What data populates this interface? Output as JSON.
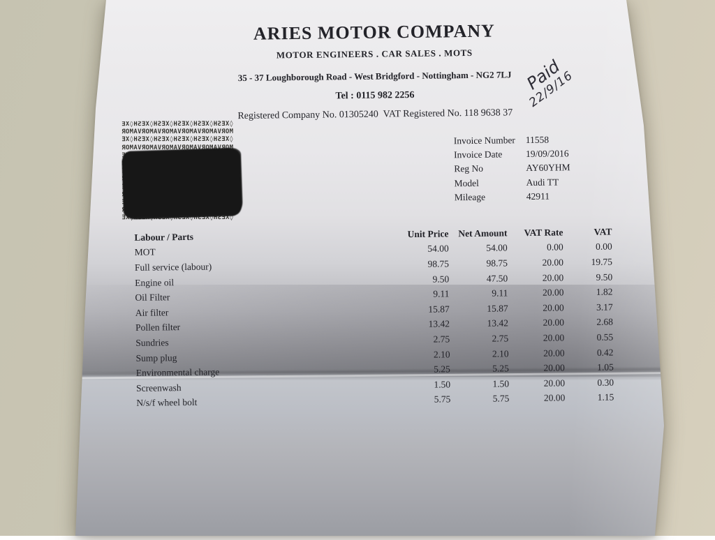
{
  "letterhead": {
    "company_name": "ARIES MOTOR COMPANY",
    "tagline": "MOTOR ENGINEERS . CAR SALES . MOTS",
    "address": "35 - 37 Loughborough Road - West Bridgford - Nottingham - NG2 7LJ",
    "phone": "Tel : 0115 982 2256",
    "registration": "Registered Company No. 01305240  VAT Registered No. 118 9638 37"
  },
  "handwriting": {
    "word": "Paid",
    "date": "22/9/16"
  },
  "redaction": {
    "pattern": "ƎX◊HƧƎX◊HƧƎX◊HƧƎX◊HƧƎX◊HƧƎX◊\nЯOMAVЯOMAVЯOMAVЯOMAVЯOMAVЯOM\nƎX◊HƧƎX◊HƧƎX◊HƧƎX◊HƧƎX◊HƧƎX◊\nЯOMAVЯOMAVЯOMAVЯOMAVЯOMAVЯOM\nƎX◊HƧƎX◊HƧƎX◊HƧƎX◊HƧƎX◊HƧƎX◊\nЯOMAVЯOMAVЯOMAVЯOMAVЯOMAVЯOM\nƎX◊HƧƎX◊HƧƎX◊HƧƎX◊HƧƎX◊HƧƎX◊\nЯOMAVЯOMAVЯOMAVЯOMAVЯOMAVЯOM\nƎX◊HƧƎX◊HƧƎX◊HƧƎX◊HƧƎX◊HƧƎX◊\nЯOMAVЯOMAVЯOMAVЯOMAVЯOMAVЯOM\nƎX◊HƧƎX◊HƧƎX◊HƧƎX◊HƧƎX◊HƧƎX◊\nЯOMAVЯOMAVЯOMAVЯOMAVЯOMAVЯOM\nƎX◊HƧƎX◊HƧƎX◊HƧƎX◊HƧƎX◊HƧƎX◊"
  },
  "invoice_details": {
    "rows": [
      {
        "label": "Invoice Number",
        "value": "11558"
      },
      {
        "label": "Invoice Date",
        "value": "19/09/2016"
      },
      {
        "label": "Reg No",
        "value": "AY60YHM"
      },
      {
        "label": "Model",
        "value": "Audi TT"
      },
      {
        "label": "Mileage",
        "value": "42911"
      }
    ]
  },
  "table": {
    "columns": [
      "Labour / Parts",
      "Unit Price",
      "Net Amount",
      "VAT Rate",
      "VAT"
    ],
    "rows": [
      {
        "label": "MOT",
        "unit_price": "54.00",
        "net_amount": "54.00",
        "vat_rate": "0.00",
        "vat": "0.00"
      },
      {
        "label": "Full service (labour)",
        "unit_price": "98.75",
        "net_amount": "98.75",
        "vat_rate": "20.00",
        "vat": "19.75"
      },
      {
        "label": "Engine oil",
        "unit_price": "9.50",
        "net_amount": "47.50",
        "vat_rate": "20.00",
        "vat": "9.50"
      },
      {
        "label": "Oil Filter",
        "unit_price": "9.11",
        "net_amount": "9.11",
        "vat_rate": "20.00",
        "vat": "1.82"
      },
      {
        "label": "Air filter",
        "unit_price": "15.87",
        "net_amount": "15.87",
        "vat_rate": "20.00",
        "vat": "3.17"
      },
      {
        "label": "Pollen filter",
        "unit_price": "13.42",
        "net_amount": "13.42",
        "vat_rate": "20.00",
        "vat": "2.68"
      },
      {
        "label": "Sundries",
        "unit_price": "2.75",
        "net_amount": "2.75",
        "vat_rate": "20.00",
        "vat": "0.55"
      },
      {
        "label": "Sump plug",
        "unit_price": "2.10",
        "net_amount": "2.10",
        "vat_rate": "20.00",
        "vat": "0.42"
      },
      {
        "label": "Environmental charge",
        "unit_price": "5.25",
        "net_amount": "5.25",
        "vat_rate": "20.00",
        "vat": "1.05"
      },
      {
        "label": "Screenwash",
        "unit_price": "1.50",
        "net_amount": "1.50",
        "vat_rate": "20.00",
        "vat": "0.30"
      },
      {
        "label": "N/s/f wheel bolt",
        "unit_price": "5.75",
        "net_amount": "5.75",
        "vat_rate": "20.00",
        "vat": "1.15"
      }
    ]
  }
}
